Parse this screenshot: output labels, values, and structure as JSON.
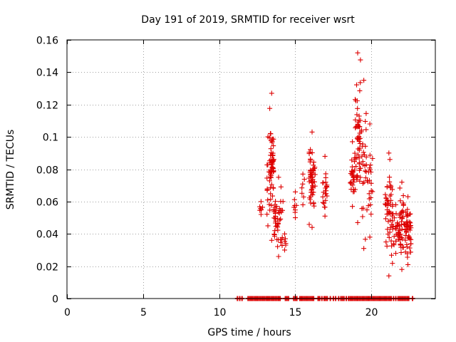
{
  "chart_data": {
    "type": "scatter",
    "title": "Day 191 of 2019, SRMTID for receiver wsrt",
    "xlabel": "GPS time / hours",
    "ylabel": "SRMTID / TECUs",
    "xlim": [
      0,
      24.2
    ],
    "ylim": [
      0,
      0.16
    ],
    "xticks": [
      0,
      5,
      10,
      15,
      20
    ],
    "xtick_labels": [
      "0",
      "5",
      "10",
      "15",
      "20"
    ],
    "yticks": [
      0,
      0.02,
      0.04,
      0.06,
      0.08,
      0.1,
      0.12,
      0.14,
      0.16
    ],
    "ytick_labels": [
      "0",
      "0.02",
      "0.04",
      "0.06",
      "0.08",
      "0.1",
      "0.12",
      "0.14",
      "0.16"
    ],
    "grid": true,
    "marker": "plus",
    "color": "#dd0000",
    "clusters": [
      {
        "x_range": [
          12.6,
          12.9
        ],
        "y_range": [
          0.052,
          0.06
        ],
        "n": 5
      },
      {
        "x_range": [
          13.1,
          13.3
        ],
        "y_range": [
          0.045,
          0.1
        ],
        "n": 10
      },
      {
        "x_range": [
          13.3,
          13.6
        ],
        "y_range": [
          0.036,
          0.127
        ],
        "n": 55
      },
      {
        "x_range": [
          13.6,
          14.2
        ],
        "y_range": [
          0.026,
          0.075
        ],
        "n": 45
      },
      {
        "x_range": [
          14.2,
          14.4
        ],
        "y_range": [
          0.03,
          0.04
        ],
        "n": 4
      },
      {
        "x_range": [
          14.9,
          15.1
        ],
        "y_range": [
          0.05,
          0.066
        ],
        "n": 6
      },
      {
        "x_range": [
          15.4,
          15.6
        ],
        "y_range": [
          0.058,
          0.077
        ],
        "n": 5
      },
      {
        "x_range": [
          15.9,
          16.3
        ],
        "y_range": [
          0.044,
          0.103
        ],
        "n": 55
      },
      {
        "x_range": [
          16.8,
          17.1
        ],
        "y_range": [
          0.051,
          0.088
        ],
        "n": 20
      },
      {
        "x_range": [
          18.6,
          18.9
        ],
        "y_range": [
          0.057,
          0.097
        ],
        "n": 25
      },
      {
        "x_range": [
          18.9,
          19.3
        ],
        "y_range": [
          0.047,
          0.152
        ],
        "n": 55
      },
      {
        "x_range": [
          19.3,
          19.7
        ],
        "y_range": [
          0.031,
          0.135
        ],
        "n": 25
      },
      {
        "x_range": [
          19.7,
          20.1
        ],
        "y_range": [
          0.038,
          0.108
        ],
        "n": 20
      },
      {
        "x_range": [
          20.9,
          21.4
        ],
        "y_range": [
          0.014,
          0.09
        ],
        "n": 50
      },
      {
        "x_range": [
          21.4,
          21.8
        ],
        "y_range": [
          0.028,
          0.058
        ],
        "n": 25
      },
      {
        "x_range": [
          21.8,
          22.2
        ],
        "y_range": [
          0.018,
          0.072
        ],
        "n": 40
      },
      {
        "x_range": [
          22.2,
          22.6
        ],
        "y_range": [
          0.021,
          0.063
        ],
        "n": 45
      }
    ],
    "zero_points": {
      "y": 0,
      "x": [
        11.2,
        11.35,
        11.5,
        11.9,
        12.0,
        12.1,
        12.2,
        12.3,
        12.4,
        12.5,
        12.6,
        12.7,
        12.8,
        12.9,
        13.0,
        13.1,
        13.2,
        13.3,
        13.4,
        13.5,
        13.6,
        13.7,
        13.8,
        13.9,
        14.0,
        14.35,
        14.45,
        14.55,
        14.9,
        15.0,
        15.1,
        15.3,
        15.4,
        15.5,
        15.6,
        15.7,
        15.8,
        15.9,
        16.0,
        16.1,
        16.2,
        16.5,
        16.6,
        16.75,
        16.9,
        17.0,
        17.1,
        17.3,
        17.5,
        17.65,
        17.85,
        18.0,
        18.1,
        18.2,
        18.35,
        18.5,
        18.6,
        18.7,
        18.8,
        18.9,
        19.0,
        19.1,
        19.2,
        19.3,
        19.4,
        19.5,
        19.6,
        19.7,
        19.8,
        19.9,
        20.0,
        20.1,
        20.2,
        20.3,
        20.4,
        20.5,
        20.6,
        20.7,
        20.8,
        20.9,
        21.0,
        21.1,
        21.2,
        21.3,
        21.45,
        21.6,
        21.75,
        21.85,
        21.95,
        22.05,
        22.15,
        22.25,
        22.35,
        22.45,
        22.7
      ]
    }
  }
}
